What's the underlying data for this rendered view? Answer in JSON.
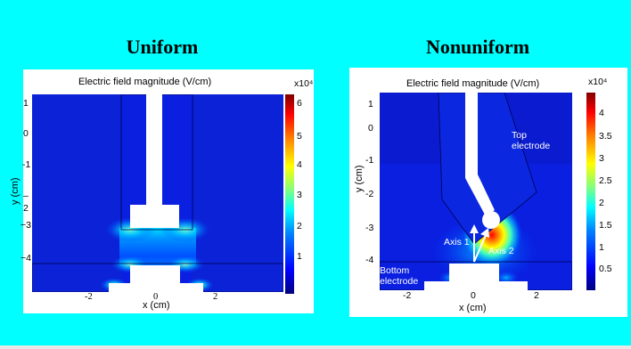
{
  "slide": {
    "background": "#00ffff",
    "left_heading": "Uniform",
    "right_heading": "Nonuniform"
  },
  "uniform": {
    "title": "Electric field magnitude (V/cm)",
    "x_label": "x (cm)",
    "y_label": "y (cm)",
    "x_ticks": [
      "-2",
      "0",
      "2"
    ],
    "y_ticks": [
      "1",
      "0",
      "-1",
      "–",
      "2",
      "−3",
      "−4"
    ],
    "colorbar_exponent": "x10⁴",
    "colorbar_ticks": [
      "6",
      "5",
      "4",
      "3",
      "2",
      "1"
    ]
  },
  "nonuniform": {
    "title": "Electric field magnitude (V/cm)",
    "x_label": "x (cm)",
    "y_label": "y (cm)",
    "x_ticks": [
      "-2",
      "0",
      "2"
    ],
    "y_ticks": [
      "1",
      "0",
      "-1",
      "-2",
      "-3",
      "-4"
    ],
    "colorbar_exponent": "x10⁴",
    "colorbar_ticks": [
      "4",
      "3.5",
      "3",
      "2.5",
      "2",
      "1.5",
      "1",
      "0.5"
    ],
    "top_electrode_label": [
      "Top",
      "electrode"
    ],
    "bottom_electrode_label": [
      "Bottom",
      "electrode"
    ],
    "axis1_label": "Axis 1",
    "axis2_label": "Axis 2"
  }
}
